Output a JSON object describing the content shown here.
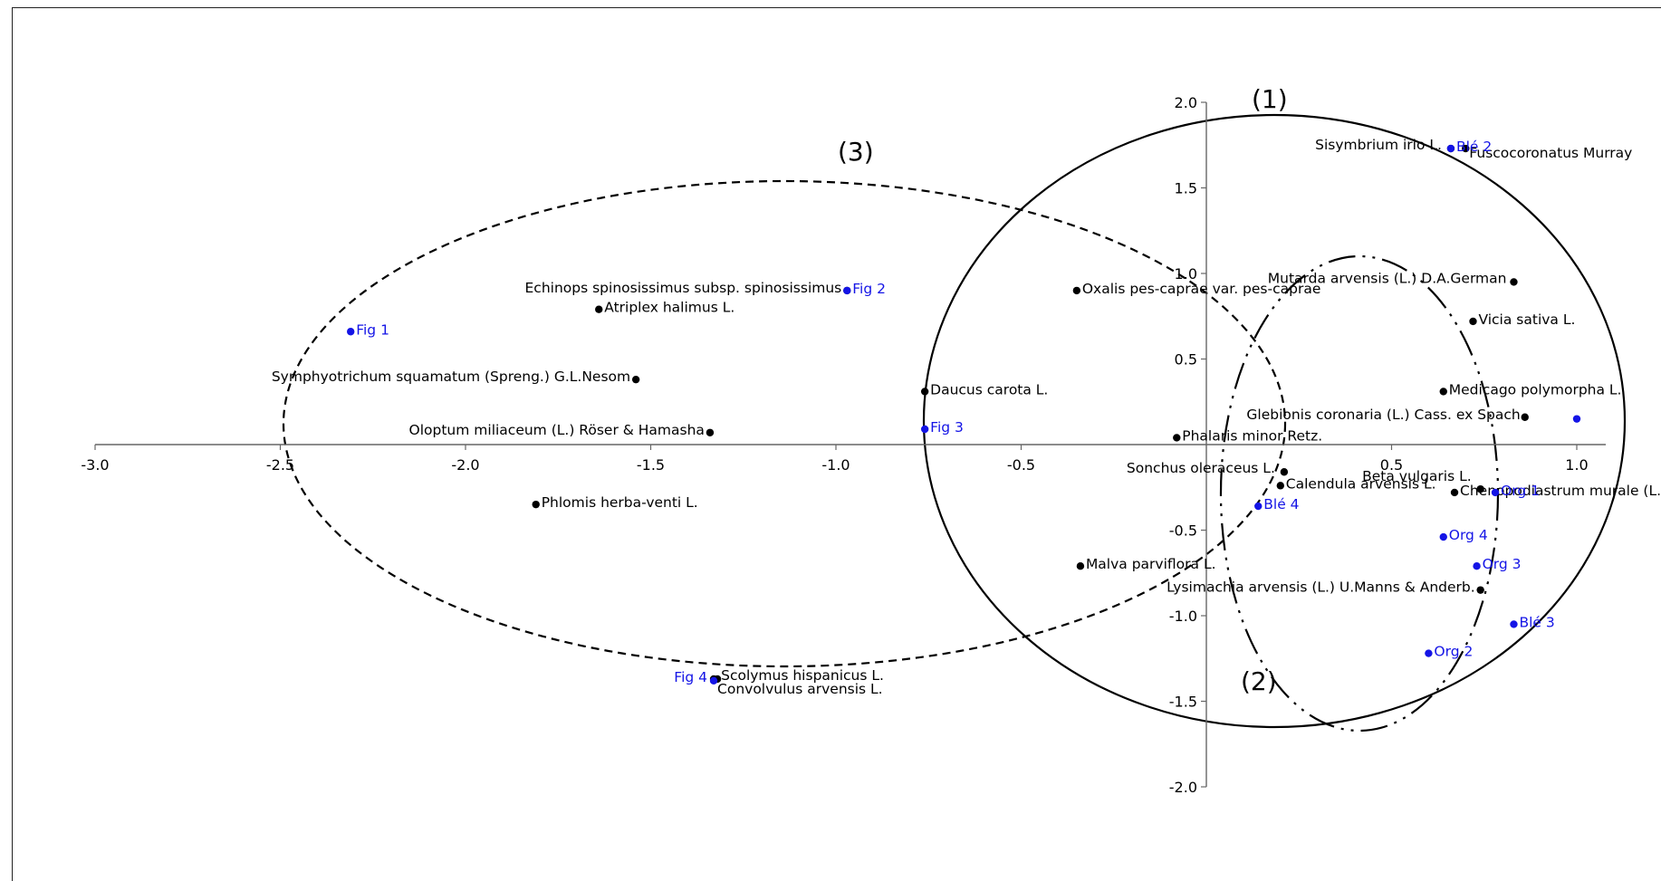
{
  "chart_data": {
    "type": "scatter",
    "xlim": [
      -3.0,
      1.0
    ],
    "ylim": [
      -2.0,
      2.0
    ],
    "x_ticks": [
      "-3.0",
      "-2.5",
      "-2.0",
      "-1.5",
      "-1.0",
      "-0.5",
      "0.5",
      "1.0"
    ],
    "y_ticks": [
      "2.0",
      "1.5",
      "1.0",
      "0.5",
      "-0.5",
      "-1.0",
      "-1.5",
      "-2.0"
    ],
    "colors": {
      "species": "#000000",
      "sites": "#1414e6"
    },
    "regions": [
      {
        "label": "(1)",
        "style": "solid"
      },
      {
        "label": "(2)",
        "style": "dash-dot-dot"
      },
      {
        "label": "(3)",
        "style": "dashed"
      }
    ],
    "series": [
      {
        "group": "species",
        "points": [
          {
            "label": "Sisymbrium irio L.",
            "x": 0.66,
            "y": 1.73
          },
          {
            "label": "Sonchus oleraceus L.",
            "x": 0.21,
            "y": -0.16
          },
          {
            "label": "Fuscocoronatus Murray",
            "x": 0.7,
            "y": 1.73
          },
          {
            "label": "Mutarda arvensis (L.) D.A.German",
            "x": 0.83,
            "y": 0.95
          },
          {
            "label": "Vicia sativa L.",
            "x": 0.72,
            "y": 0.72
          },
          {
            "label": "Medicago polymorpha L.",
            "x": 0.64,
            "y": 0.31
          },
          {
            "label": "Glebionis coronaria (L.) Cass. ex Spach",
            "x": 0.86,
            "y": 0.16
          },
          {
            "label": "Phalaris minor Retz.",
            "x": -0.08,
            "y": 0.04
          },
          {
            "label": "Beta vulgaris L.",
            "x": 0.74,
            "y": -0.26
          },
          {
            "label": "Calendula arvensis L.",
            "x": 0.2,
            "y": -0.24
          },
          {
            "label": "Chenopodiastrum murale (L.)",
            "x": 0.67,
            "y": -0.28
          },
          {
            "label": "Lysimachia arvensis (L.) U.Manns & Anderb.",
            "x": 0.74,
            "y": -0.85
          },
          {
            "label": "Malva parviflora L.",
            "x": -0.34,
            "y": -0.71
          },
          {
            "label": "Oxalis pes-caprae var. pes-caprae",
            "x": -0.35,
            "y": 0.9
          },
          {
            "label": "Daucus carota L.",
            "x": -0.76,
            "y": 0.31
          },
          {
            "label": "Echinops spinosissimus subsp. spinosissimus",
            "x": -0.97,
            "y": 0.9
          },
          {
            "label": "Atriplex halimus L.",
            "x": -1.64,
            "y": 0.79
          },
          {
            "label": "Symphyotrichum squamatum (Spreng.) G.L.Nesom",
            "x": -1.54,
            "y": 0.38
          },
          {
            "label": "Oloptum miliaceum (L.) Röser & Hamasha",
            "x": -1.34,
            "y": 0.07
          },
          {
            "label": "Phlomis herba-venti L.",
            "x": -1.81,
            "y": -0.35
          },
          {
            "label": "Scolymus hispanicus L.",
            "x": -1.32,
            "y": -1.37
          },
          {
            "label": "Convolvulus arvensis L.",
            "x": -1.33,
            "y": -1.37
          }
        ]
      },
      {
        "group": "sites",
        "points": [
          {
            "label": "Fig 1",
            "x": -2.31,
            "y": 0.66
          },
          {
            "label": "Fig 2",
            "x": -0.97,
            "y": 0.9
          },
          {
            "label": "Fig 3",
            "x": -0.76,
            "y": 0.09
          },
          {
            "label": "Fig 4",
            "x": -1.33,
            "y": -1.38
          },
          {
            "label": "Blé 2",
            "x": 0.66,
            "y": 1.73
          },
          {
            "label": "Blé 3",
            "x": 0.83,
            "y": -1.05
          },
          {
            "label": "Blé 4",
            "x": 0.14,
            "y": -0.36
          },
          {
            "label": "Org 1",
            "x": 0.78,
            "y": -0.28
          },
          {
            "label": "Org 2",
            "x": 0.6,
            "y": -1.22
          },
          {
            "label": "Org 3",
            "x": 0.73,
            "y": -0.71
          },
          {
            "label": "Org 4",
            "x": 0.64,
            "y": -0.54
          },
          {
            "label": "",
            "x": 1.0,
            "y": 0.15
          }
        ]
      }
    ]
  }
}
